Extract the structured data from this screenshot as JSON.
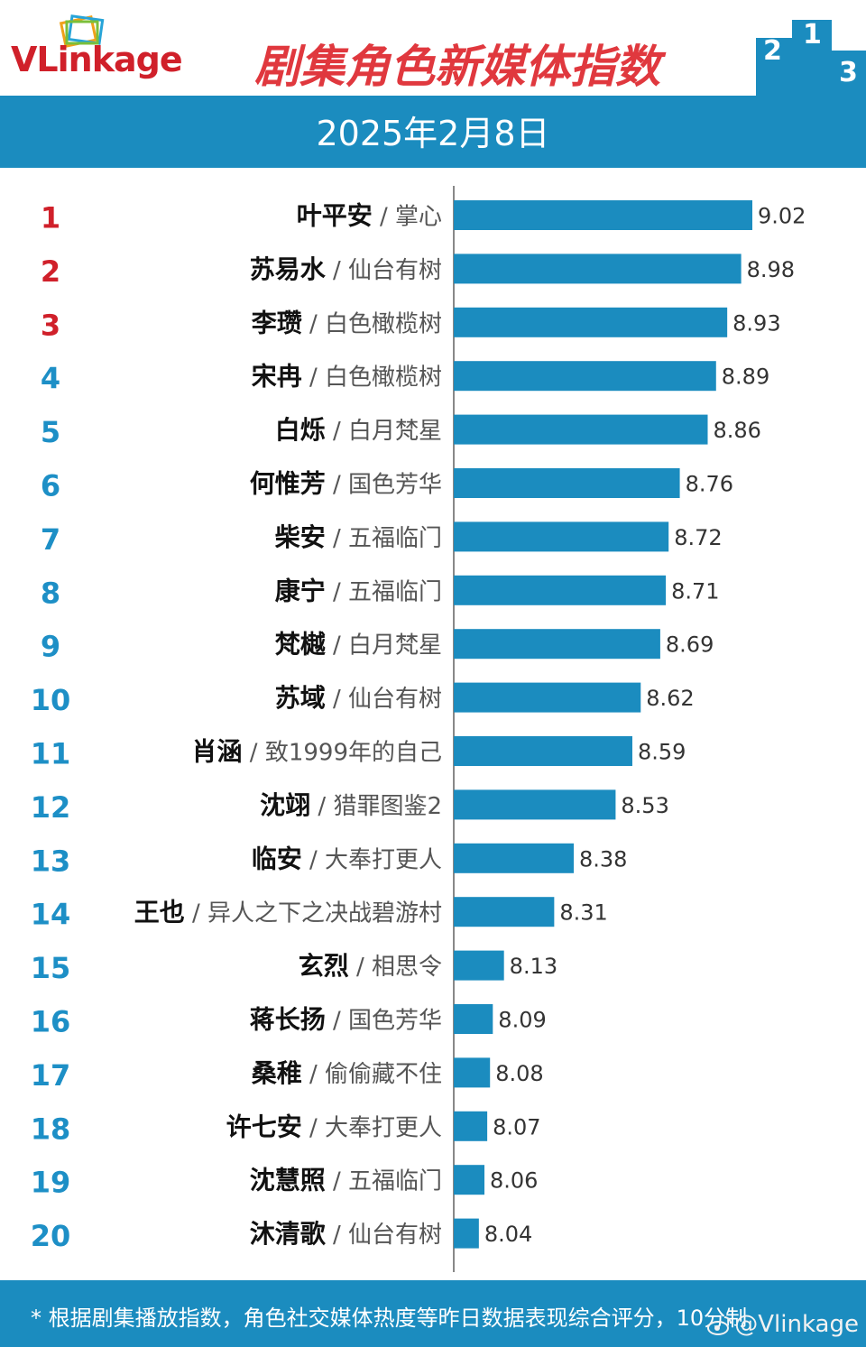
{
  "header": {
    "brand": "VLinkage",
    "title": "剧集角色新媒体指数",
    "podium_digits": [
      "2",
      "1",
      "3"
    ]
  },
  "date": "2025年2月8日",
  "colors": {
    "bar": "#1b8cbf",
    "band": "#1b8cbf",
    "title": "#e0383e",
    "rank_top3": "#d0202a",
    "rank_rest": "#1d8fc6"
  },
  "chart_data": {
    "type": "bar",
    "orientation": "horizontal",
    "title": "剧集角色新媒体指数",
    "ranks": [
      "1",
      "2",
      "3",
      "4",
      "5",
      "6",
      "7",
      "8",
      "9",
      "10",
      "11",
      "12",
      "13",
      "14",
      "15",
      "16",
      "17",
      "18",
      "19",
      "20"
    ],
    "characters": [
      "叶平安",
      "苏易水",
      "李瓒",
      "宋冉",
      "白烁",
      "何惟芳",
      "柴安",
      "康宁",
      "梵樾",
      "苏域",
      "肖涵",
      "沈翊",
      "临安",
      "王也",
      "玄烈",
      "蒋长扬",
      "桑稚",
      "许七安",
      "沈慧照",
      "沐清歌"
    ],
    "dramas": [
      "掌心",
      "仙台有树",
      "白色橄榄树",
      "白色橄榄树",
      "白月梵星",
      "国色芳华",
      "五福临门",
      "五福临门",
      "白月梵星",
      "仙台有树",
      "致1999年的自己",
      "猎罪图鉴2",
      "大奉打更人",
      "异人之下之决战碧游村",
      "相思令",
      "国色芳华",
      "偷偷藏不住",
      "大奉打更人",
      "五福临门",
      "仙台有树"
    ],
    "categories": [
      "叶平安 / 掌心",
      "苏易水 / 仙台有树",
      "李瓒 / 白色橄榄树",
      "宋冉 / 白色橄榄树",
      "白烁 / 白月梵星",
      "何惟芳 / 国色芳华",
      "柴安 / 五福临门",
      "康宁 / 五福临门",
      "梵樾 / 白月梵星",
      "苏域 / 仙台有树",
      "肖涵 / 致1999年的自己",
      "沈翊 / 猎罪图鉴2",
      "临安 / 大奉打更人",
      "王也 / 异人之下之决战碧游村",
      "玄烈 / 相思令",
      "蒋长扬 / 国色芳华",
      "桑稚 / 偷偷藏不住",
      "许七安 / 大奉打更人",
      "沈慧照 / 五福临门",
      "沐清歌 / 仙台有树"
    ],
    "values": [
      9.02,
      8.98,
      8.93,
      8.89,
      8.86,
      8.76,
      8.72,
      8.71,
      8.69,
      8.62,
      8.59,
      8.53,
      8.38,
      8.31,
      8.13,
      8.09,
      8.08,
      8.07,
      8.06,
      8.04
    ],
    "value_labels": [
      "9.02",
      "8.98",
      "8.93",
      "8.89",
      "8.86",
      "8.76",
      "8.72",
      "8.71",
      "8.69",
      "8.62",
      "8.59",
      "8.53",
      "8.38",
      "8.31",
      "8.13",
      "8.09",
      "8.08",
      "8.07",
      "8.06",
      "8.04"
    ],
    "xlim": [
      7.95,
      9.02
    ],
    "grid": false,
    "legend": "none"
  },
  "footer": {
    "note": "* 根据剧集播放指数，角色社交媒体热度等昨日数据表现综合评分，10分制",
    "watermark": "@Vlinkage"
  }
}
